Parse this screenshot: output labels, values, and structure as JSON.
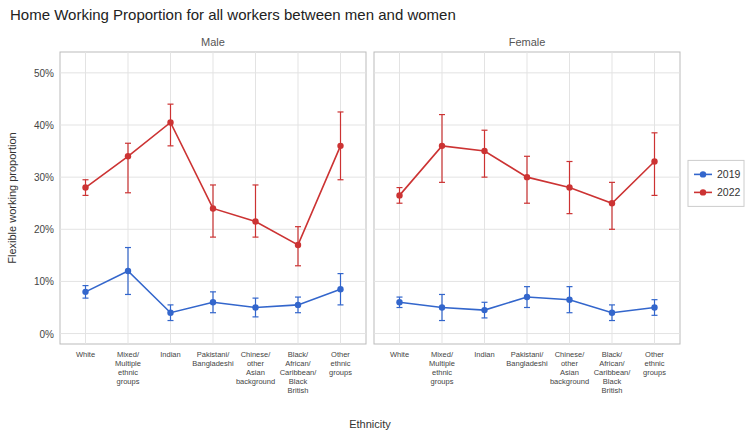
{
  "chart_data": [
    {
      "type": "line",
      "title": "Home Working Proportion for all workers between men and women",
      "subtitle": "Male",
      "xlabel": "Ethnicity",
      "ylabel": "Flexible working proportion",
      "categories": [
        "White",
        "Mixed/\nMultiple\nethnic\ngroups",
        "Indian",
        "Pakistani/\nBangladeshi",
        "Chinese/\nother\nAsian\nbackground",
        "Black/\nAfrican/\nCaribbean/\nBlack\nBritish",
        "Other\nethnic\ngroups"
      ],
      "series": [
        {
          "name": "2019",
          "color": "#3366cc",
          "marker": "circle",
          "line_style": "solid",
          "values": [
            8.0,
            12.0,
            4.0,
            6.0,
            5.0,
            5.5,
            8.5
          ],
          "error_low": [
            1.2,
            4.5,
            1.5,
            2.0,
            1.8,
            1.5,
            3.0
          ],
          "error_high": [
            1.2,
            4.5,
            1.5,
            2.0,
            1.8,
            1.5,
            3.0
          ]
        },
        {
          "name": "2022",
          "color": "#cc3333",
          "marker": "circle",
          "line_style": "solid",
          "values": [
            28.0,
            34.0,
            40.5,
            24.0,
            21.5,
            17.0,
            36.0
          ],
          "error_low": [
            1.5,
            7.0,
            4.5,
            5.5,
            3.0,
            4.0,
            6.5
          ],
          "error_high": [
            1.5,
            2.5,
            3.5,
            4.5,
            7.0,
            3.5,
            6.5
          ]
        }
      ],
      "ylim": [
        -2,
        54
      ],
      "yticks": [
        {
          "value": 0,
          "label": "0%"
        },
        {
          "value": 10,
          "label": "10%"
        },
        {
          "value": 20,
          "label": "20%"
        },
        {
          "value": 30,
          "label": "30%"
        },
        {
          "value": 40,
          "label": "40%"
        },
        {
          "value": 50,
          "label": "50%"
        }
      ],
      "grid": true
    },
    {
      "type": "line",
      "subtitle": "Female",
      "categories": [
        "White",
        "Mixed/\nMultiple\nethnic\ngroups",
        "Indian",
        "Pakistani/\nBangladeshi",
        "Chinese/\nother\nAsian\nbackground",
        "Black/\nAfrican/\nCaribbean/\nBlack\nBritish",
        "Other\nethnic\ngroups"
      ],
      "series": [
        {
          "name": "2019",
          "color": "#3366cc",
          "marker": "circle",
          "line_style": "solid",
          "values": [
            6.0,
            5.0,
            4.5,
            7.0,
            6.5,
            4.0,
            5.0
          ],
          "error_low": [
            1.0,
            2.5,
            1.5,
            2.0,
            2.5,
            1.5,
            1.5
          ],
          "error_high": [
            1.0,
            2.5,
            1.5,
            2.0,
            2.5,
            1.5,
            1.5
          ]
        },
        {
          "name": "2022",
          "color": "#cc3333",
          "marker": "circle",
          "line_style": "solid",
          "values": [
            26.5,
            36.0,
            35.0,
            30.0,
            28.0,
            25.0,
            33.0
          ],
          "error_low": [
            1.5,
            7.0,
            5.0,
            5.0,
            5.0,
            5.0,
            6.5
          ],
          "error_high": [
            1.5,
            6.0,
            4.0,
            4.0,
            5.0,
            4.0,
            5.5
          ]
        }
      ],
      "ylim": [
        -2,
        54
      ],
      "yticks": [
        {
          "value": 0,
          "label": "0%"
        },
        {
          "value": 10,
          "label": "10%"
        },
        {
          "value": 20,
          "label": "20%"
        },
        {
          "value": 30,
          "label": "30%"
        },
        {
          "value": 40,
          "label": "40%"
        },
        {
          "value": 50,
          "label": "50%"
        }
      ],
      "grid": true,
      "tick_labels": "x",
      "legend": "right"
    }
  ]
}
